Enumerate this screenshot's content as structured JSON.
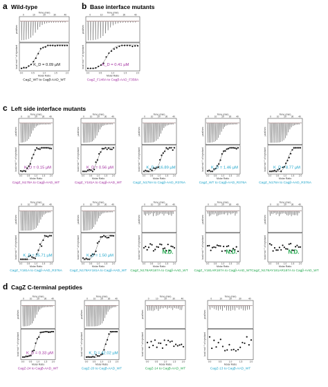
{
  "colors": {
    "black": "#111111",
    "purple": "#a02a9e",
    "cyan": "#1aa3c9",
    "green": "#1ea64a",
    "fit": "#c94c4c"
  },
  "sections": [
    {
      "label": "a",
      "title": "Wild-type"
    },
    {
      "label": "b",
      "title": "Base interface mutants"
    },
    {
      "label": "c",
      "title": "Left side interface mutants"
    },
    {
      "label": "d",
      "title": "CagZ C-terminal peptides"
    }
  ],
  "axes": {
    "time": "Time (min)",
    "molar": "Molar Ratio",
    "power": "µcal/sec",
    "heat": "kcal mol⁻¹ of injectant",
    "time_ticks": [
      "0",
      "10",
      "20",
      "30",
      "40"
    ],
    "molar_ticks": [
      "0.0",
      "0.5",
      "1.0",
      "1.5",
      "2.0"
    ]
  },
  "panels": [
    {
      "id": "a1",
      "kd": "K_D = 0.09 µM",
      "nd": "",
      "caption": "CagZ_WT to Cagβ-AAD_WT",
      "color": "black",
      "shape": "sig",
      "mid": 0.32,
      "noise": 0.02
    },
    {
      "id": "b1",
      "kd": "K_D = 0.41 µM",
      "nd": "",
      "caption": "CagZ_F148A to Cagβ-AAD_F358A",
      "color": "purple",
      "shape": "sig",
      "mid": 0.38,
      "noise": 0.03
    },
    {
      "id": "c1",
      "kd": "K_D = 0.15 µM",
      "nd": "",
      "caption": "CagZ_N178A to Cagβ-AAD_WT",
      "color": "purple",
      "shape": "sig",
      "mid": 0.35,
      "noise": 0.03
    },
    {
      "id": "c2",
      "kd": "K_D = 0.56 µM",
      "nd": "",
      "caption": "CagZ_Y181A to Cagβ-AAD_WT",
      "color": "purple",
      "shape": "sig",
      "mid": 0.48,
      "noise": 0.05
    },
    {
      "id": "c3",
      "kd": "K_D = 16.89 µM",
      "nd": "",
      "caption": "CagZ_N178A to Cagβ-AAD_R376A",
      "color": "cyan",
      "shape": "sig",
      "mid": 0.55,
      "noise": 0.06
    },
    {
      "id": "c4",
      "kd": "K_D = 1.46 µM",
      "nd": "",
      "caption": "CagZ_WT to Cagβ-AAD_R376A",
      "color": "cyan",
      "shape": "sig",
      "mid": 0.42,
      "noise": 0.03
    },
    {
      "id": "c5",
      "kd": "K_D = 8.77 µM",
      "nd": "",
      "caption": "CagZ_N178A to Cagβ-AAD_R376A",
      "color": "cyan",
      "shape": "sig",
      "mid": 0.58,
      "noise": 0.05
    },
    {
      "id": "c6",
      "kd": "K_D = 35.71 µM",
      "nd": "",
      "caption": "CagZ_Y181A to Cagβ-AAD_R376A",
      "color": "cyan",
      "shape": "sig",
      "mid": 0.62,
      "noise": 0.08
    },
    {
      "id": "c7",
      "kd": "K_D = 1.50 µM",
      "nd": "",
      "caption": "CagZ_N178AY181A to Cagβ-AAD_WT",
      "color": "cyan",
      "shape": "sig",
      "mid": 0.45,
      "noise": 0.05
    },
    {
      "id": "c8",
      "kd": "",
      "nd": "N.D.",
      "caption": "CagZ_N178AR187A to Cagβ-AAD_WT",
      "color": "green",
      "shape": "flat",
      "mid": 0.5,
      "noise": 0.08
    },
    {
      "id": "c9",
      "kd": "",
      "nd": "N.D.",
      "caption": "CagZ_Y181AR187A to Cagβ-AAD_WT",
      "color": "green",
      "shape": "flat",
      "mid": 0.5,
      "noise": 0.08
    },
    {
      "id": "c10",
      "kd": "",
      "nd": "N.D.",
      "caption": "CagZ_N178AY181AR187A to Cagβ-AAD_WT",
      "color": "green",
      "shape": "flat",
      "mid": 0.5,
      "noise": 0.08
    },
    {
      "id": "d1",
      "kd": "K_D = 0.33 µM",
      "nd": "",
      "caption": "CagZ-24 to Cagβ-AAD_WT",
      "color": "purple",
      "shape": "sig",
      "mid": 0.42,
      "noise": 0.03
    },
    {
      "id": "d2",
      "kd": "K_D = 42.02 µM",
      "nd": "",
      "caption": "CagZ-20 to Cagβ-AAD_WT",
      "color": "cyan",
      "shape": "sig",
      "mid": 0.62,
      "noise": 0.05
    },
    {
      "id": "d3",
      "kd": "",
      "nd": "",
      "caption": "CagZ-14 to Cagβ-AAD_WT",
      "color": "green",
      "shape": "flat",
      "mid": 0.5,
      "noise": 0.08
    },
    {
      "id": "d4",
      "kd": "",
      "nd": "",
      "caption": "CagZ-13 to Cagβ-AAD_WT",
      "color": "cyan",
      "shape": "flat",
      "mid": 0.5,
      "noise": 0.15
    }
  ]
}
